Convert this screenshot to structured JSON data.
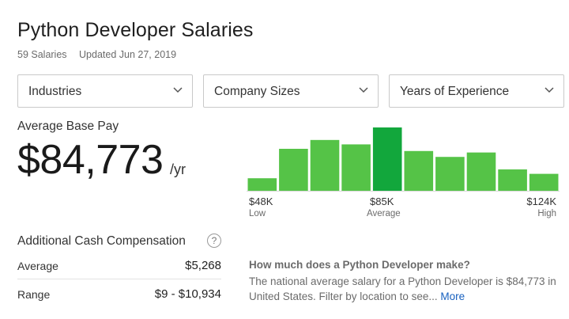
{
  "header": {
    "title": "Python Developer Salaries",
    "salary_count": "59 Salaries",
    "updated": "Updated Jun 27, 2019"
  },
  "filters": [
    {
      "label": "Industries"
    },
    {
      "label": "Company Sizes"
    },
    {
      "label": "Years of Experience"
    }
  ],
  "pay": {
    "label": "Average Base Pay",
    "amount": "$84,773",
    "unit": "/yr"
  },
  "chart_data": {
    "type": "bar",
    "values": [
      17,
      57,
      69,
      63,
      86,
      54,
      46,
      52,
      29,
      23
    ],
    "highlight_index": 4,
    "colors": {
      "bar": "#55c347",
      "highlight": "#12a73c"
    },
    "tick_labels": [
      {
        "value": "$48K",
        "sub": "Low"
      },
      {
        "value": "$85K",
        "sub": "Average"
      },
      {
        "value": "$124K",
        "sub": "High"
      }
    ]
  },
  "cash": {
    "title": "Additional Cash Compensation",
    "help_icon": "?",
    "rows": [
      {
        "label": "Average",
        "value": "$5,268"
      },
      {
        "label": "Range",
        "value": "$9 - $10,934"
      }
    ]
  },
  "info": {
    "question": "How much does a Python Developer make?",
    "text": "The national average salary for a Python Developer is $84,773 in United States. Filter by location to see...",
    "more_label": "More"
  }
}
